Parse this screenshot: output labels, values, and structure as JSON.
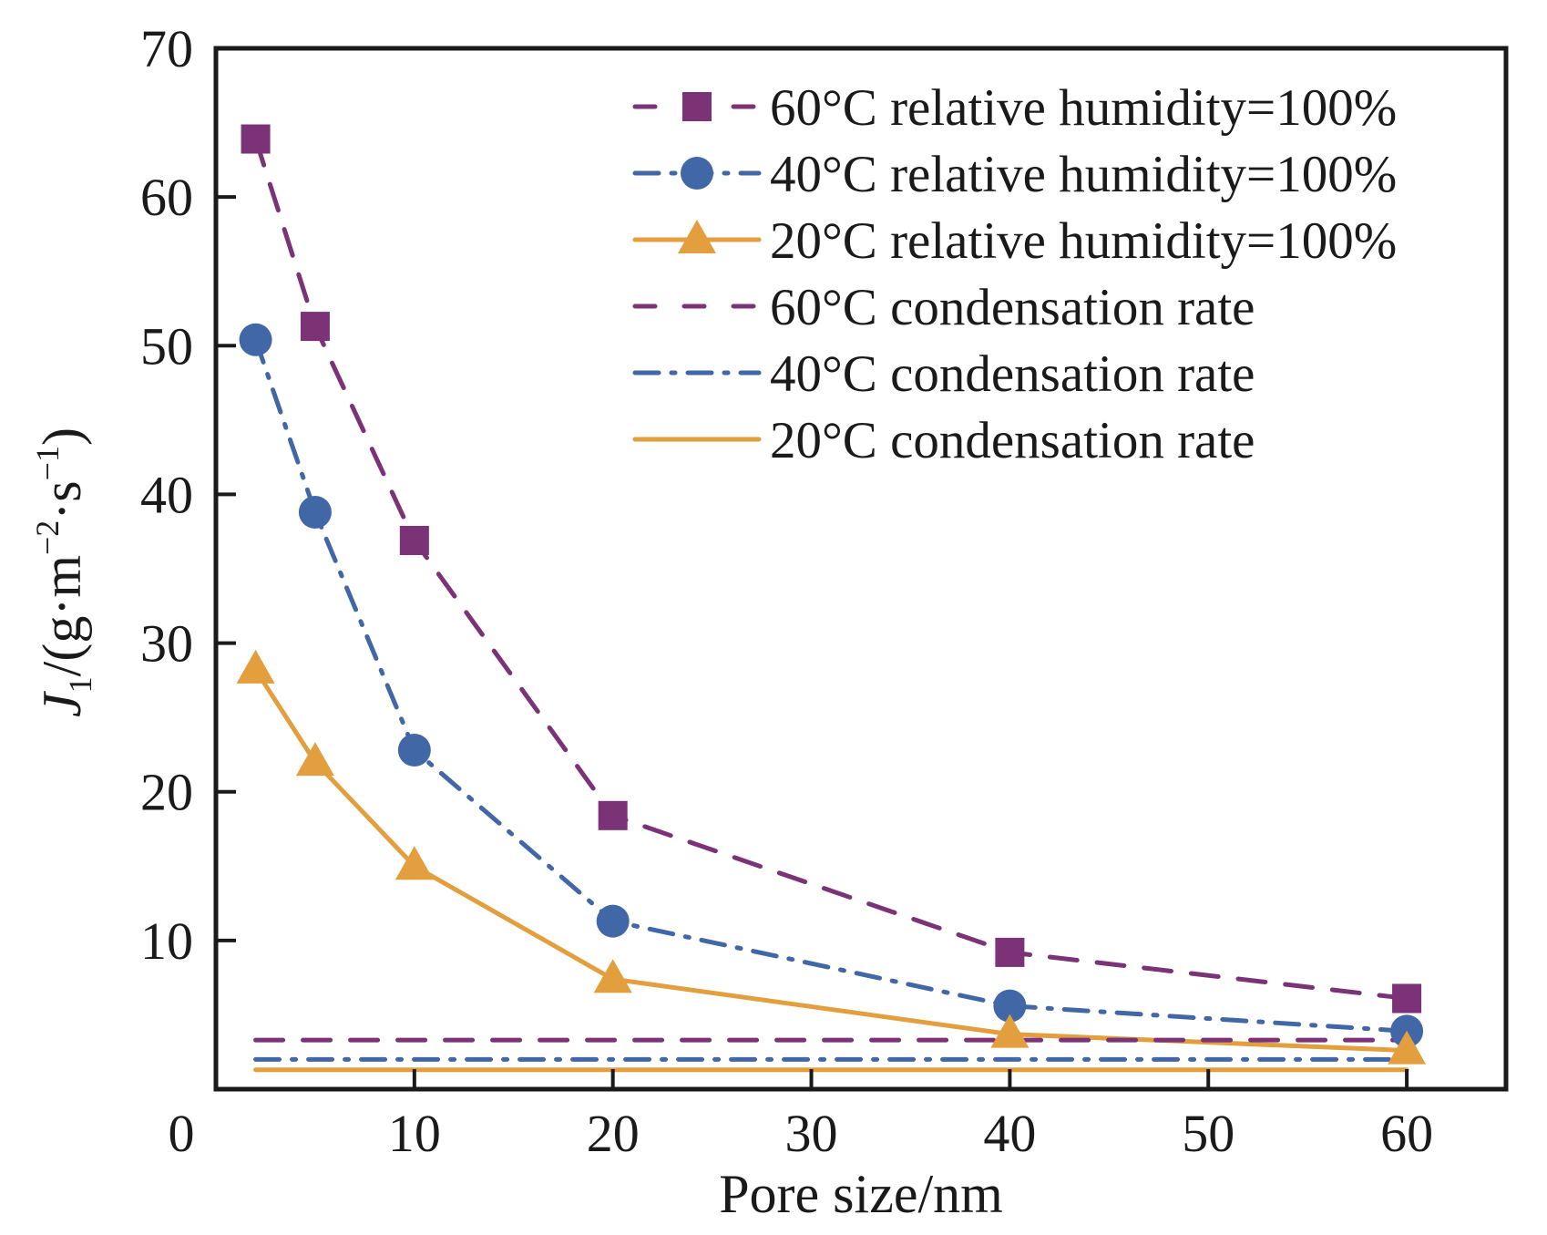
{
  "chart_data": {
    "type": "line",
    "title": "",
    "xlabel": "Pore size/nm",
    "ylabel": {
      "symbol": "J",
      "subscript": "1",
      "units_prefix": "/(g·m",
      "exp1": "−2",
      "units_mid": "·s",
      "exp2": "−1",
      "units_suffix": ")"
    },
    "xlim": [
      0,
      65
    ],
    "ylim": [
      0,
      70
    ],
    "xticks": [
      0,
      10,
      20,
      30,
      40,
      50,
      60
    ],
    "xtick_labels": [
      "0",
      "10",
      "20",
      "30",
      "40",
      "50",
      "60"
    ],
    "yticks": [
      10,
      20,
      30,
      40,
      50,
      60,
      70
    ],
    "ytick_labels": [
      "10",
      "20",
      "30",
      "40",
      "50",
      "60",
      "70"
    ],
    "grid": false,
    "legend_position": "top-right",
    "x": [
      2,
      5,
      10,
      20,
      40,
      60
    ],
    "series": [
      {
        "name": "60°C relative humidity=100%",
        "values": [
          63.9,
          51.3,
          36.9,
          18.4,
          9.2,
          6.1
        ],
        "color": "#7b3277",
        "marker": "square",
        "linestyle": "dashed"
      },
      {
        "name": "40°C relative humidity=100%",
        "values": [
          50.4,
          38.8,
          22.8,
          11.3,
          5.6,
          3.9
        ],
        "color": "#4267a6",
        "marker": "circle",
        "linestyle": "dashdot"
      },
      {
        "name": "20°C relative humidity=100%",
        "values": [
          28.2,
          22.0,
          15.0,
          7.4,
          3.7,
          2.6
        ],
        "color": "#e39e3e",
        "marker": "triangle",
        "linestyle": "solid"
      },
      {
        "name": "60°C condensation rate",
        "x_range": [
          2,
          60
        ],
        "constant": 3.3,
        "color": "#7b3277",
        "marker": "none",
        "linestyle": "dashed"
      },
      {
        "name": "40°C condensation rate",
        "x_range": [
          2,
          60
        ],
        "constant": 2.0,
        "color": "#4267a6",
        "marker": "none",
        "linestyle": "dashdot"
      },
      {
        "name": "20°C condensation rate",
        "x_range": [
          2,
          60
        ],
        "constant": 1.3,
        "color": "#e39e3e",
        "marker": "none",
        "linestyle": "solid"
      }
    ]
  }
}
